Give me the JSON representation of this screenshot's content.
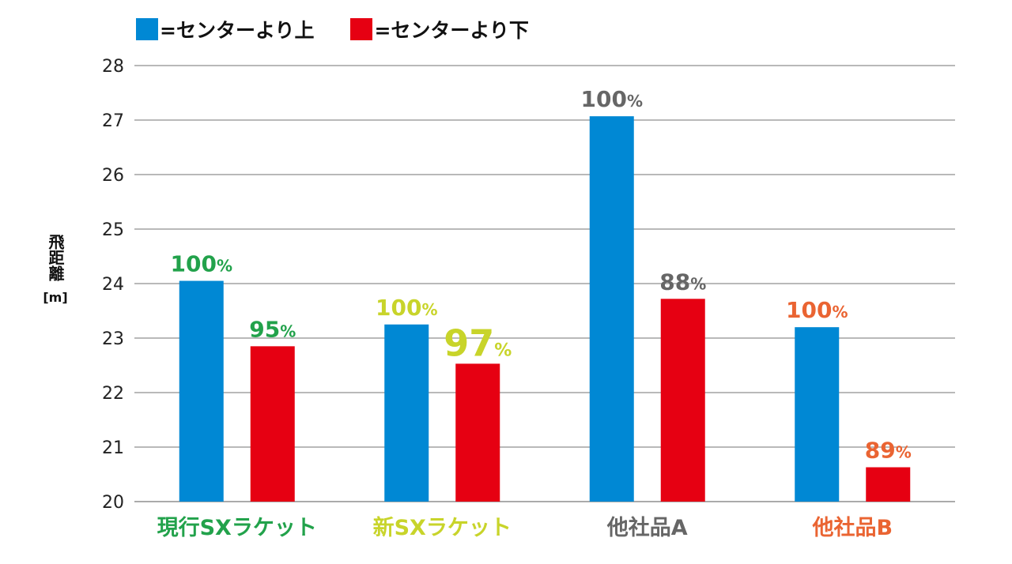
{
  "legend": {
    "upper_label": "=センターより上",
    "lower_label": "=センターより下"
  },
  "axis": {
    "ylabel": "飛距離",
    "yunit": "[m]"
  },
  "colors": {
    "upper": "#0088d4",
    "lower": "#e60012",
    "grid": "#8f8f8f"
  },
  "chart_data": {
    "type": "bar",
    "categories": [
      "現行SXラケット",
      "新SXラケット",
      "他社品A",
      "他社品B"
    ],
    "category_colors": [
      "#22a24b",
      "#c8d42a",
      "#666666",
      "#ea6432"
    ],
    "series": [
      {
        "name": "=センターより上",
        "values": [
          24.05,
          23.25,
          27.07,
          23.2
        ],
        "labels": [
          "100",
          "100",
          "100",
          "100"
        ]
      },
      {
        "name": "=センターより下",
        "values": [
          22.85,
          22.53,
          23.72,
          20.63
        ],
        "labels": [
          "95",
          "97",
          "88",
          "89"
        ]
      }
    ],
    "percent_sign": "%",
    "ylim": [
      20,
      28
    ],
    "yticks": [
      20,
      21,
      22,
      23,
      24,
      25,
      26,
      27,
      28
    ],
    "ylabel": "飛距離 [m]",
    "grid": true,
    "legend_position": "top-left"
  }
}
